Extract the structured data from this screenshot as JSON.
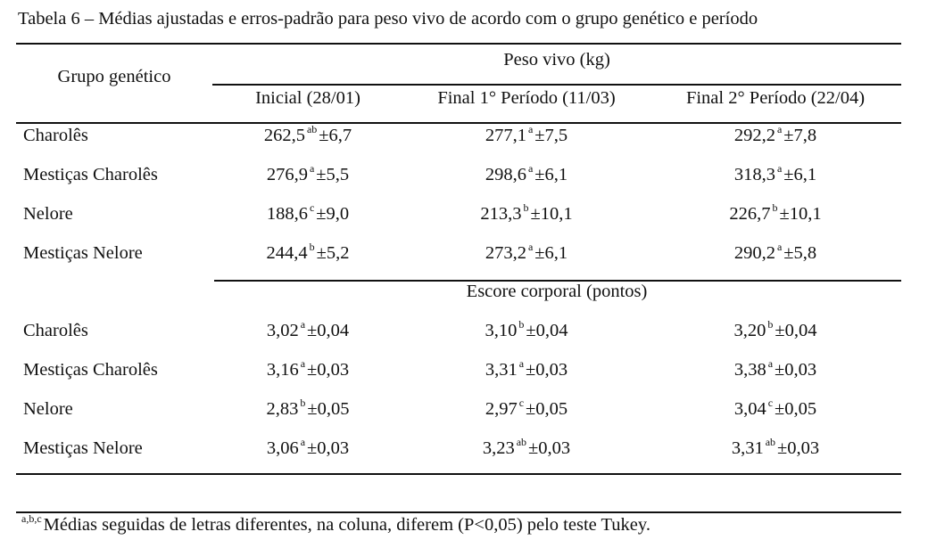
{
  "caption": "Tabela 6 – Médias ajustadas e erros-padrão para peso vivo de acordo com o grupo genético e período",
  "header": {
    "group_col": "Grupo genético",
    "columns": [
      "Inicial (28/01)",
      "Final 1° Período (11/03)",
      "Final 2° Período (22/04)"
    ]
  },
  "sections": [
    {
      "title": "Peso vivo (kg)",
      "rows": [
        {
          "group": "Charolês",
          "cells": [
            {
              "v": "262,5",
              "s": "ab",
              "e": "±6,7"
            },
            {
              "v": "277,1",
              "s": "a",
              "e": "±7,5"
            },
            {
              "v": "292,2",
              "s": "a",
              "e": "±7,8"
            }
          ]
        },
        {
          "group": "Mestiças Charolês",
          "cells": [
            {
              "v": "276,9",
              "s": "a",
              "e": "±5,5"
            },
            {
              "v": "298,6",
              "s": "a",
              "e": "±6,1"
            },
            {
              "v": "318,3",
              "s": "a",
              "e": "±6,1"
            }
          ]
        },
        {
          "group": "Nelore",
          "cells": [
            {
              "v": "188,6",
              "s": "c",
              "e": "±9,0"
            },
            {
              "v": "213,3",
              "s": "b",
              "e": "±10,1"
            },
            {
              "v": "226,7",
              "s": "b",
              "e": "±10,1"
            }
          ]
        },
        {
          "group": "Mestiças Nelore",
          "cells": [
            {
              "v": "244,4",
              "s": "b",
              "e": "±5,2"
            },
            {
              "v": "273,2",
              "s": "a",
              "e": "±6,1"
            },
            {
              "v": "290,2",
              "s": "a",
              "e": "±5,8"
            }
          ]
        }
      ]
    },
    {
      "title": "Escore corporal (pontos)",
      "rows": [
        {
          "group": "Charolês",
          "cells": [
            {
              "v": "3,02",
              "s": "a",
              "e": "±0,04"
            },
            {
              "v": "3,10",
              "s": "b",
              "e": "±0,04"
            },
            {
              "v": "3,20",
              "s": "b",
              "e": "±0,04"
            }
          ]
        },
        {
          "group": "Mestiças Charolês",
          "cells": [
            {
              "v": "3,16",
              "s": "a",
              "e": "±0,03"
            },
            {
              "v": "3,31",
              "s": "a",
              "e": "±0,03"
            },
            {
              "v": "3,38",
              "s": "a",
              "e": "±0,03"
            }
          ]
        },
        {
          "group": "Nelore",
          "cells": [
            {
              "v": "2,83",
              "s": "b",
              "e": "±0,05"
            },
            {
              "v": "2,97",
              "s": "c",
              "e": "±0,05"
            },
            {
              "v": "3,04",
              "s": "c",
              "e": "±0,05"
            }
          ]
        },
        {
          "group": "Mestiças Nelore",
          "cells": [
            {
              "v": "3,06",
              "s": "a",
              "e": "±0,03"
            },
            {
              "v": "3,23",
              "s": "ab",
              "e": "±0,03"
            },
            {
              "v": "3,31",
              "s": "ab",
              "e": "±0,03"
            }
          ]
        }
      ]
    }
  ],
  "footnote": {
    "marks": "a,b,c",
    "text": "Médias seguidas de letras diferentes, na coluna, diferem (P<0,05) pelo teste Tukey."
  }
}
